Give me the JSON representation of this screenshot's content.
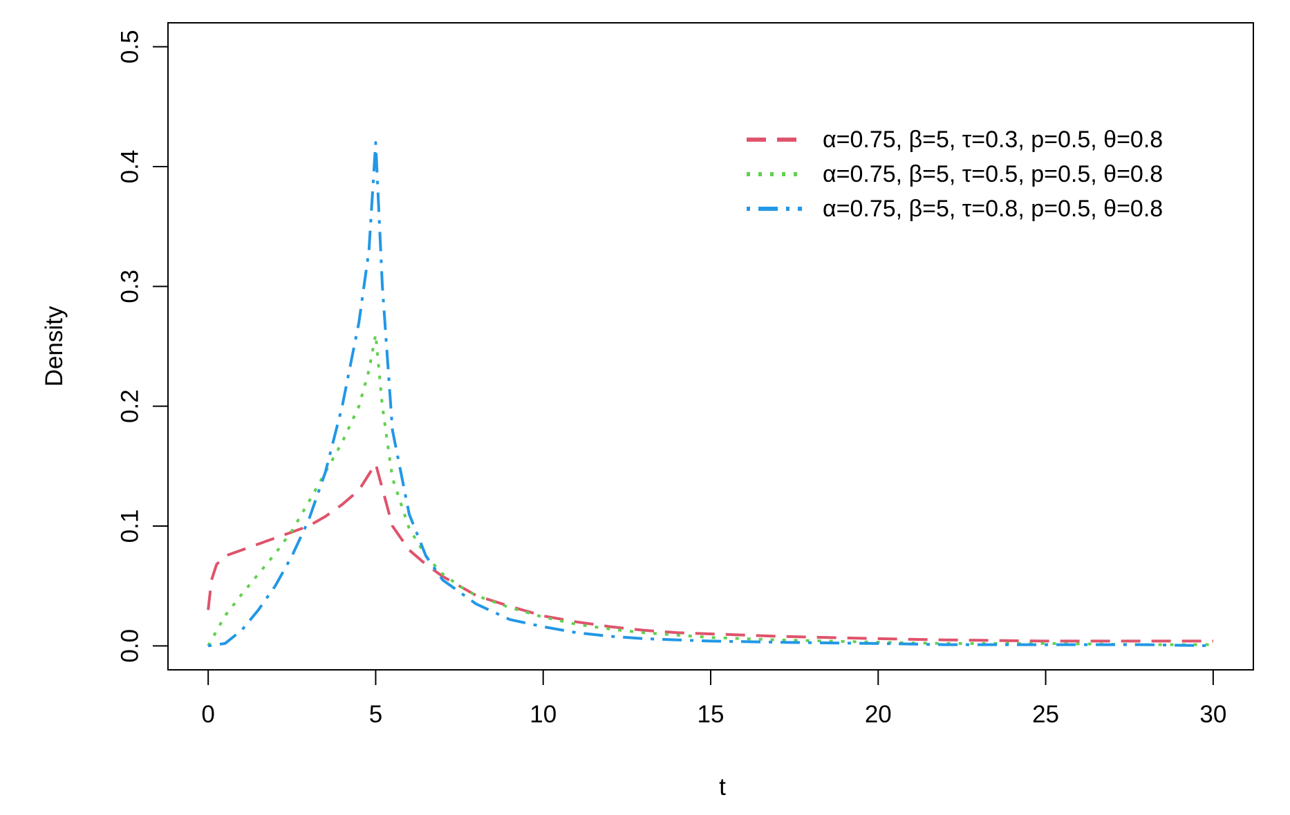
{
  "chart_data": {
    "type": "line",
    "xlabel": "t",
    "ylabel": "Density",
    "xlim": [
      -1.2,
      31.2
    ],
    "ylim": [
      -0.02,
      0.52
    ],
    "x_ticks": [
      0,
      5,
      10,
      15,
      20,
      25,
      30
    ],
    "y_ticks": [
      "0.0",
      "0.1",
      "0.2",
      "0.3",
      "0.4",
      "0.5"
    ],
    "legend_position": "top-right",
    "grid": false,
    "series": [
      {
        "name": "α=0.75, β=5, τ=0.3, p=0.5, θ=0.8",
        "color": "#DF536B",
        "dash": "dashed",
        "x": [
          0,
          0.1,
          0.25,
          0.5,
          1,
          1.5,
          2,
          2.5,
          3,
          3.5,
          4,
          4.5,
          5,
          5.5,
          6,
          6.5,
          7,
          7.5,
          8,
          9,
          10,
          11,
          12,
          13,
          14,
          15,
          17,
          20,
          22,
          25,
          28,
          30
        ],
        "values": [
          0.03,
          0.055,
          0.068,
          0.075,
          0.08,
          0.085,
          0.09,
          0.095,
          0.1,
          0.108,
          0.118,
          0.13,
          0.152,
          0.1,
          0.08,
          0.068,
          0.058,
          0.05,
          0.042,
          0.033,
          0.025,
          0.02,
          0.016,
          0.013,
          0.011,
          0.01,
          0.008,
          0.006,
          0.005,
          0.004,
          0.004,
          0.004
        ]
      },
      {
        "name": "α=0.75, β=5, τ=0.5, p=0.5, θ=0.8",
        "color": "#61D04F",
        "dash": "dotted",
        "x": [
          0,
          0.5,
          1,
          1.5,
          2,
          2.5,
          3,
          3.5,
          4,
          4.5,
          4.8,
          5,
          5.2,
          5.5,
          6,
          6.5,
          7,
          7.5,
          8,
          9,
          10,
          11,
          12,
          13,
          14,
          15,
          17,
          20,
          22,
          25,
          28,
          30
        ],
        "values": [
          0.0,
          0.025,
          0.043,
          0.06,
          0.077,
          0.096,
          0.12,
          0.145,
          0.17,
          0.2,
          0.23,
          0.26,
          0.2,
          0.14,
          0.098,
          0.075,
          0.06,
          0.05,
          0.042,
          0.032,
          0.024,
          0.018,
          0.014,
          0.011,
          0.009,
          0.007,
          0.005,
          0.003,
          0.002,
          0.002,
          0.001,
          0.001
        ]
      },
      {
        "name": "α=0.75, β=5, τ=0.8, p=0.5, θ=0.8",
        "color": "#2297E6",
        "dash": "dotdash",
        "x": [
          0,
          0.5,
          1,
          1.5,
          2,
          2.5,
          3,
          3.5,
          4,
          4.5,
          4.8,
          5,
          5.2,
          5.5,
          6,
          6.5,
          7,
          7.5,
          8,
          9,
          10,
          11,
          12,
          13,
          14,
          15,
          17,
          20,
          22,
          25,
          28,
          30
        ],
        "values": [
          0.0,
          0.002,
          0.013,
          0.03,
          0.05,
          0.075,
          0.105,
          0.145,
          0.2,
          0.27,
          0.33,
          0.42,
          0.3,
          0.18,
          0.11,
          0.075,
          0.055,
          0.045,
          0.035,
          0.022,
          0.016,
          0.011,
          0.008,
          0.006,
          0.005,
          0.004,
          0.003,
          0.002,
          0.001,
          0.001,
          0.001,
          0.0
        ]
      }
    ]
  }
}
